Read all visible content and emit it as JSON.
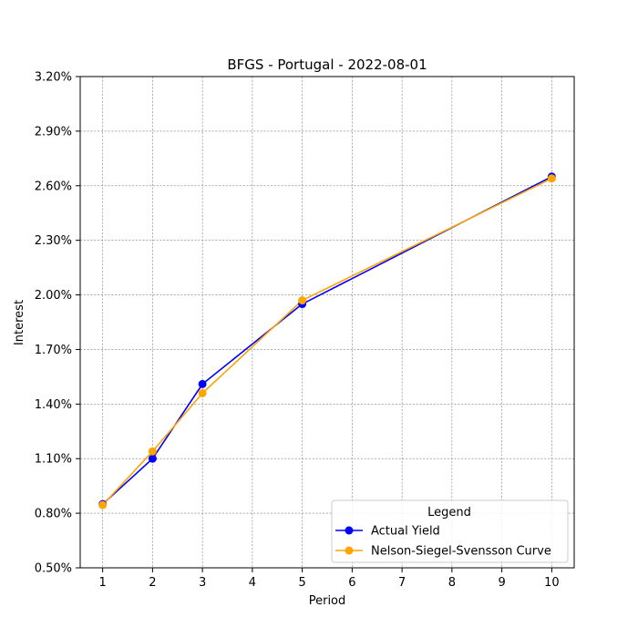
{
  "chart_data": {
    "type": "line",
    "title": "BFGS - Portugal - 2022-08-01",
    "xlabel": "Period",
    "ylabel": "Interest",
    "x_ticks": [
      1,
      2,
      3,
      4,
      5,
      6,
      7,
      8,
      9,
      10
    ],
    "y_ticks": [
      "0.50%",
      "0.80%",
      "1.10%",
      "1.40%",
      "1.70%",
      "2.00%",
      "2.30%",
      "2.60%",
      "2.90%",
      "3.20%"
    ],
    "y_tick_values": [
      0.5,
      0.8,
      1.1,
      1.4,
      1.7,
      2.0,
      2.3,
      2.6,
      2.9,
      3.2
    ],
    "xlim": [
      0.55,
      10.45
    ],
    "ylim": [
      0.5,
      3.2
    ],
    "grid": true,
    "legend": {
      "title": "Legend",
      "placement": "bottom-right"
    },
    "series": [
      {
        "name": "Actual Yield",
        "color": "#0000ff",
        "x": [
          1,
          2,
          3,
          5,
          10
        ],
        "y": [
          0.85,
          1.1,
          1.51,
          1.95,
          2.65
        ]
      },
      {
        "name": "Nelson-Siegel-Svensson Curve",
        "color": "#ffa500",
        "x": [
          1,
          2,
          3,
          5,
          10
        ],
        "y": [
          0.845,
          1.14,
          1.46,
          1.97,
          2.64
        ]
      }
    ]
  }
}
